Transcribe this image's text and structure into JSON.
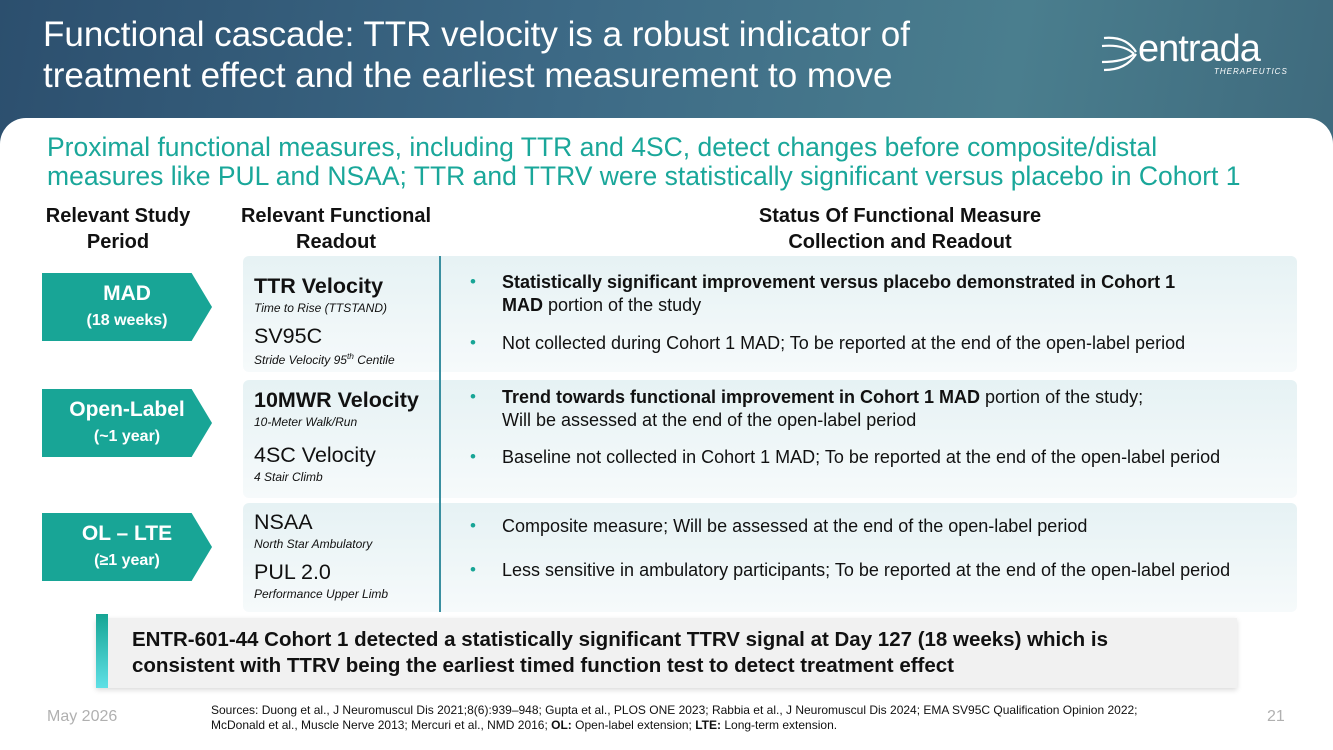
{
  "header": {
    "title_lines": [
      "Functional cascade: TTR velocity is a robust indicator of",
      "treatment effect and the earliest measurement to move"
    ],
    "logo": "entrada",
    "logo_sub": "THERAPEUTICS"
  },
  "subtitle_lines": [
    "Proximal functional measures, including TTR and 4SC, detect changes before composite/distal",
    "measures like PUL and NSAA; TTR and TTRV were statistically significant versus placebo in Cohort 1"
  ],
  "columns": [
    [
      "Relevant Study",
      "Period"
    ],
    [
      "Relevant Functional",
      "Readout"
    ],
    [
      "Status Of Functional Measure",
      "Collection and Readout"
    ]
  ],
  "rows": [
    {
      "period": "MAD",
      "duration": "(18 weeks)",
      "measures": [
        {
          "name": "TTR Velocity",
          "bold": true,
          "desc": [
            {
              "text": "Time to Rise (TTSTAND)"
            }
          ],
          "status": [
            [
              {
                "text": "Statistically significant improvement versus placebo demonstrated in Cohort 1",
                "bold": true
              }
            ],
            [
              {
                "text": "MAD",
                "bold": true
              },
              {
                "text": " portion of the study"
              }
            ]
          ]
        },
        {
          "name": "SV95C",
          "bold": false,
          "desc": [
            {
              "text": "Stride Velocity 95"
            },
            {
              "text": "th",
              "sup": true
            },
            {
              "text": " Centile"
            }
          ],
          "status": [
            [
              {
                "text": "Not collected during Cohort 1 MAD; To be reported at the end of the open-label period"
              }
            ]
          ]
        }
      ]
    },
    {
      "period": "Open-Label",
      "duration": "(~1 year)",
      "measures": [
        {
          "name": "10MWR Velocity",
          "bold": true,
          "desc": [
            {
              "text": "10-Meter Walk/Run"
            }
          ],
          "status": [
            [
              {
                "text": "Trend towards functional improvement in Cohort 1 MAD",
                "bold": true
              },
              {
                "text": " portion of the study;"
              }
            ],
            [
              {
                "text": "Will be assessed at the end of the open-label period"
              }
            ]
          ]
        },
        {
          "name": "4SC Velocity",
          "bold": false,
          "desc": [
            {
              "text": "4 Stair Climb"
            }
          ],
          "status": [
            [
              {
                "text": "Baseline not collected in Cohort 1 MAD; To be reported at the end of the open-label period"
              }
            ]
          ]
        }
      ]
    },
    {
      "period": "OL – LTE",
      "duration": "(≥1 year)",
      "measures": [
        {
          "name": "NSAA",
          "bold": false,
          "desc": [
            {
              "text": "North Star Ambulatory"
            }
          ],
          "status": [
            [
              {
                "text": "Composite measure; Will be assessed at the end of the open-label period"
              }
            ]
          ]
        },
        {
          "name": "PUL 2.0",
          "bold": false,
          "desc": [
            {
              "text": "Performance Upper Limb"
            }
          ],
          "status": [
            [
              {
                "text": "Less sensitive in ambulatory participants; To be reported at the end of the open-label period"
              }
            ]
          ]
        }
      ]
    }
  ],
  "callout_lines": [
    "ENTR-601-44 Cohort 1 detected a statistically significant TTRV signal at Day 127 (18 weeks) which is",
    "consistent with TTRV being the earliest timed function test to detect treatment effect"
  ],
  "sources": [
    [
      {
        "text": "Sources: Duong et al., J Neuromuscul Dis 2021;8(6):939–948; Gupta et al., PLOS ONE 2023; Rabbia et al., J Neuromuscul Dis 2024; EMA SV95C Qualification Opinion 2022;"
      }
    ],
    [
      {
        "text": "McDonald et al., Muscle Nerve 2013; Mercuri et al., NMD 2016; "
      },
      {
        "text": "OL:",
        "bold": true
      },
      {
        "text": " Open-label extension; "
      },
      {
        "text": "LTE:",
        "bold": true
      },
      {
        "text": " Long-term extension."
      }
    ]
  ],
  "footer": {
    "date": "May 2026",
    "page": 21
  }
}
